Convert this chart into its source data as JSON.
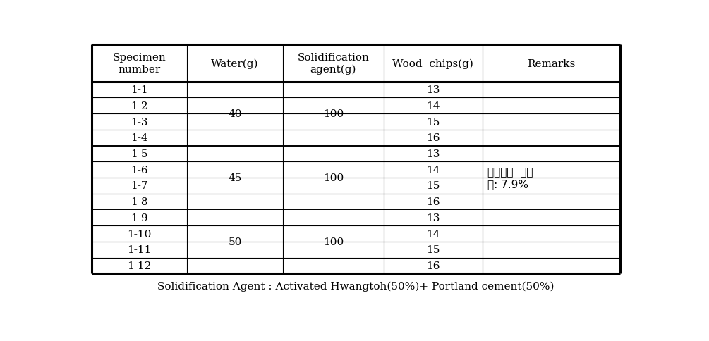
{
  "footnote": "Solidification Agent : Activated Hwangtoh(50%)+ Portland cement(50%)",
  "headers": [
    "Specimen\nnumber",
    "Water(g)",
    "Solidification\nagent(g)",
    "Wood  chips(g)",
    "Remarks"
  ],
  "spec_nums": [
    "1-1",
    "1-2",
    "1-3",
    "1-4",
    "1-5",
    "1-6",
    "1-7",
    "1-8",
    "1-9",
    "1-10",
    "1-11",
    "1-12"
  ],
  "wood_vals": [
    "13",
    "14",
    "15",
    "16",
    "13",
    "14",
    "15",
    "16",
    "13",
    "14",
    "15",
    "16"
  ],
  "water_groups": [
    [
      0,
      3,
      "40"
    ],
    [
      4,
      7,
      "45"
    ],
    [
      8,
      11,
      "50"
    ]
  ],
  "solid_groups": [
    [
      0,
      3,
      "100"
    ],
    [
      4,
      7,
      "100"
    ],
    [
      8,
      11,
      "100"
    ]
  ],
  "remarks_text": "목재칩의  함수\n율: 7.9%",
  "background_color": "#ffffff",
  "text_color": "#000000",
  "font_size": 11,
  "header_font_size": 11,
  "footnote_font_size": 11
}
